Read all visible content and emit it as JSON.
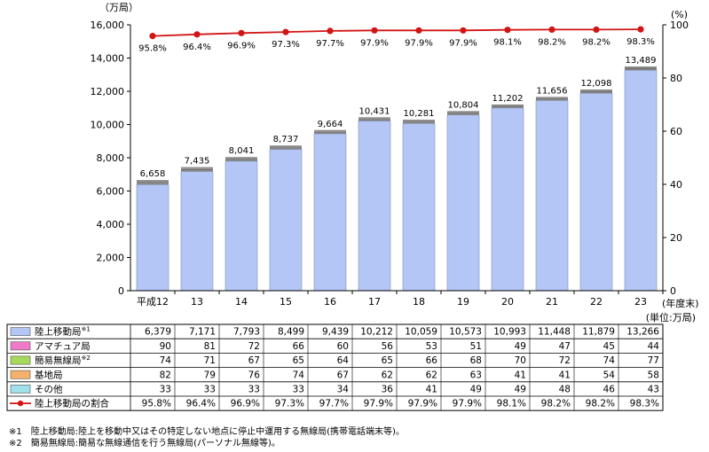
{
  "chart_data": {
    "type": "bar",
    "stacked": true,
    "left_axis_unit": "（万局）",
    "right_axis_unit": "(%)",
    "x_axis_suffix": "(年度末)",
    "table_unit": "(単位:万局)",
    "categories": [
      "平成12",
      "13",
      "14",
      "15",
      "16",
      "17",
      "18",
      "19",
      "20",
      "21",
      "22",
      "23"
    ],
    "totals": [
      "6,658",
      "7,435",
      "8,041",
      "8,737",
      "9,664",
      "10,431",
      "10,281",
      "10,804",
      "11,202",
      "11,656",
      "12,098",
      "13,489"
    ],
    "ylim_left": [
      0,
      16000
    ],
    "yticks_left": [
      "0",
      "2,000",
      "4,000",
      "6,000",
      "8,000",
      "10,000",
      "12,000",
      "14,000",
      "16,000"
    ],
    "ylim_right": [
      0,
      100
    ],
    "yticks_right": [
      "0",
      "20",
      "40",
      "60",
      "80",
      "100"
    ],
    "series": [
      {
        "name": "陸上移動局",
        "note": "※1",
        "color": "#b3c6f5",
        "values": [
          6379,
          7171,
          7793,
          8499,
          9439,
          10212,
          10059,
          10573,
          10993,
          11448,
          11879,
          13266
        ],
        "labels": [
          "6,379",
          "7,171",
          "7,793",
          "8,499",
          "9,439",
          "10,212",
          "10,059",
          "10,573",
          "10,993",
          "11,448",
          "11,879",
          "13,266"
        ]
      },
      {
        "name": "アマチュア局",
        "note": "",
        "color": "#f07ac8",
        "values": [
          90,
          81,
          72,
          66,
          60,
          56,
          53,
          51,
          49,
          47,
          45,
          44
        ],
        "labels": [
          "90",
          "81",
          "72",
          "66",
          "60",
          "56",
          "53",
          "51",
          "49",
          "47",
          "45",
          "44"
        ]
      },
      {
        "name": "簡易無線局",
        "note": "※2",
        "color": "#a6d85a",
        "values": [
          74,
          71,
          67,
          65,
          64,
          65,
          66,
          68,
          70,
          72,
          74,
          77
        ],
        "labels": [
          "74",
          "71",
          "67",
          "65",
          "64",
          "65",
          "66",
          "68",
          "70",
          "72",
          "74",
          "77"
        ]
      },
      {
        "name": "基地局",
        "note": "",
        "color": "#f5b06a",
        "values": [
          82,
          79,
          76,
          74,
          67,
          62,
          62,
          63,
          41,
          41,
          54,
          58
        ],
        "labels": [
          "82",
          "79",
          "76",
          "74",
          "67",
          "62",
          "62",
          "63",
          "41",
          "41",
          "54",
          "58"
        ]
      },
      {
        "name": "その他",
        "note": "",
        "color": "#9fe0ea",
        "values": [
          33,
          33,
          33,
          33,
          34,
          36,
          41,
          49,
          49,
          48,
          46,
          43
        ],
        "labels": [
          "33",
          "33",
          "33",
          "33",
          "34",
          "36",
          "41",
          "49",
          "49",
          "48",
          "46",
          "43"
        ]
      }
    ],
    "line_series": {
      "name": "陸上移動局の割合",
      "color": "#d21414",
      "axis": "right",
      "values": [
        95.8,
        96.4,
        96.9,
        97.3,
        97.7,
        97.9,
        97.9,
        97.9,
        98.1,
        98.2,
        98.2,
        98.3
      ],
      "labels": [
        "95.8%",
        "96.4%",
        "96.9%",
        "97.3%",
        "97.7%",
        "97.9%",
        "97.9%",
        "97.9%",
        "98.1%",
        "98.2%",
        "98.2%",
        "98.3%"
      ]
    }
  },
  "footnotes": [
    "※1　陸上移動局:陸上を移動中又はその特定しない地点に停止中運用する無線局(携帯電話端末等)。",
    "※2　簡易無線局:簡易な無線通信を行う無線局(パーソナル無線等)。"
  ]
}
